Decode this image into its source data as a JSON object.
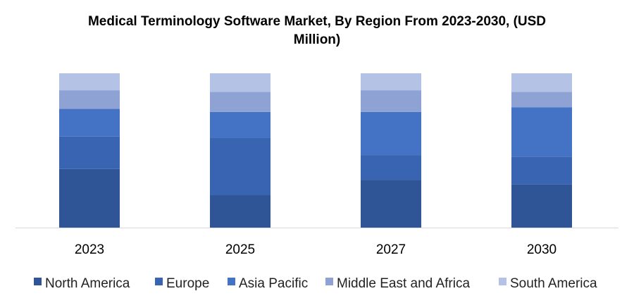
{
  "chart_data": {
    "type": "bar",
    "stacked": true,
    "title": "Medical Terminology Software Market, By Region From 2023-2030, (USD Million)",
    "xlabel": "",
    "ylabel": "",
    "categories": [
      "2023",
      "2025",
      "2027",
      "2030"
    ],
    "ylim": [
      0,
      100
    ],
    "grid": false,
    "legend": "bottom",
    "series": [
      {
        "name": "North America",
        "color": "#2f5597",
        "values": [
          38,
          21,
          31,
          28
        ]
      },
      {
        "name": "Europe",
        "color": "#3864b1",
        "values": [
          21,
          37,
          16,
          18
        ]
      },
      {
        "name": "Asia Pacific",
        "color": "#4472c4",
        "values": [
          18,
          17,
          28,
          32
        ]
      },
      {
        "name": "Middle East and Africa",
        "color": "#8fa2d4",
        "values": [
          12,
          13,
          14,
          10
        ]
      },
      {
        "name": "South America",
        "color": "#b4c2e6",
        "values": [
          11,
          12,
          11,
          12
        ]
      }
    ]
  }
}
